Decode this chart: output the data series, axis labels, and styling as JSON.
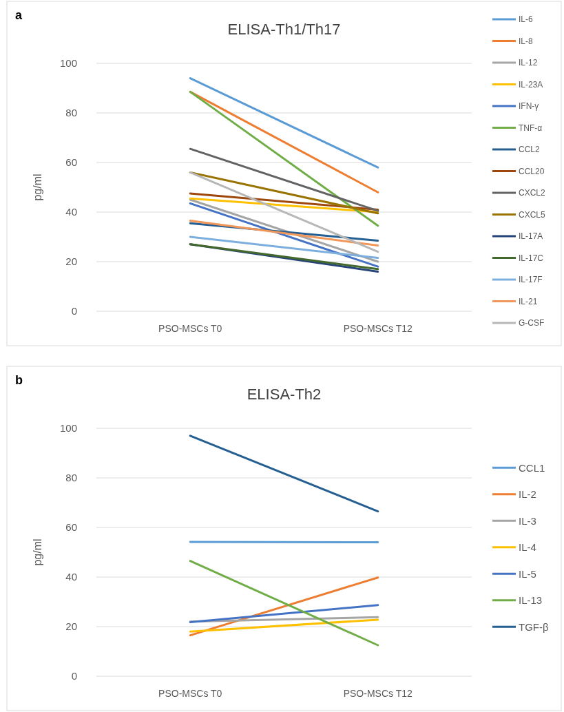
{
  "chart_data": [
    {
      "type": "line",
      "title": "ELISA-Th1/Th17",
      "ylabel": "pg/ml",
      "annotations": [
        "a"
      ],
      "categories": [
        "PSO-MSCs T0",
        "PSO-MSCs T12"
      ],
      "ylim": [
        0,
        100
      ],
      "yticks": [
        0,
        20,
        40,
        60,
        80,
        100
      ],
      "grid": "y",
      "legend": "right",
      "marker": "none",
      "series": [
        {
          "name": "IL-6",
          "color": "#5b9bd5",
          "values": [
            94,
            58
          ]
        },
        {
          "name": "IL-8",
          "color": "#ed7d31",
          "values": [
            88.5,
            48
          ]
        },
        {
          "name": "IL-12",
          "color": "#a5a5a5",
          "values": [
            45,
            20
          ]
        },
        {
          "name": "IL-23A",
          "color": "#ffc000",
          "values": [
            45.5,
            40
          ]
        },
        {
          "name": "IFN-γ",
          "color": "#4472c4",
          "values": [
            43.5,
            18
          ]
        },
        {
          "name": "TNF-α",
          "color": "#70ad47",
          "values": [
            88.5,
            34.5
          ]
        },
        {
          "name": "CCL2",
          "color": "#255e91",
          "values": [
            35.5,
            28.5
          ]
        },
        {
          "name": "CCL20",
          "color": "#9e480e",
          "values": [
            47.5,
            41
          ]
        },
        {
          "name": "CXCL2",
          "color": "#636363",
          "values": [
            65.5,
            40.5
          ]
        },
        {
          "name": "CXCL5",
          "color": "#997300",
          "values": [
            56,
            39.5
          ]
        },
        {
          "name": "IL-17A",
          "color": "#264478",
          "values": [
            27,
            16
          ]
        },
        {
          "name": "IL-17C",
          "color": "#43682b",
          "values": [
            27,
            17
          ]
        },
        {
          "name": "IL-17F",
          "color": "#7cafdd",
          "values": [
            30,
            21.5
          ]
        },
        {
          "name": "IL-21",
          "color": "#f1975a",
          "values": [
            36.5,
            26.5
          ]
        },
        {
          "name": "G-CSF",
          "color": "#b7b7b7",
          "values": [
            56,
            24
          ]
        }
      ]
    },
    {
      "type": "line",
      "title": "ELISA-Th2",
      "ylabel": "pg/ml",
      "annotations": [
        "b"
      ],
      "categories": [
        "PSO-MSCs T0",
        "PSO-MSCs T12"
      ],
      "ylim": [
        0,
        100
      ],
      "yticks": [
        0,
        20,
        40,
        60,
        80,
        100
      ],
      "grid": "y",
      "legend": "right",
      "marker": "none",
      "series": [
        {
          "name": "CCL1",
          "color": "#5b9bd5",
          "values": [
            54.2,
            54
          ]
        },
        {
          "name": "IL-2",
          "color": "#ed7d31",
          "values": [
            16.5,
            39.8
          ]
        },
        {
          "name": "IL-3",
          "color": "#a5a5a5",
          "values": [
            22,
            23.8
          ]
        },
        {
          "name": "IL-4",
          "color": "#ffc000",
          "values": [
            18,
            22.8
          ]
        },
        {
          "name": "IL-5",
          "color": "#4472c4",
          "values": [
            21.8,
            28.7
          ]
        },
        {
          "name": "IL-13",
          "color": "#70ad47",
          "values": [
            46.5,
            12.5
          ]
        },
        {
          "name": "TGF-β",
          "color": "#255e91",
          "values": [
            97,
            66.5
          ]
        }
      ]
    }
  ]
}
